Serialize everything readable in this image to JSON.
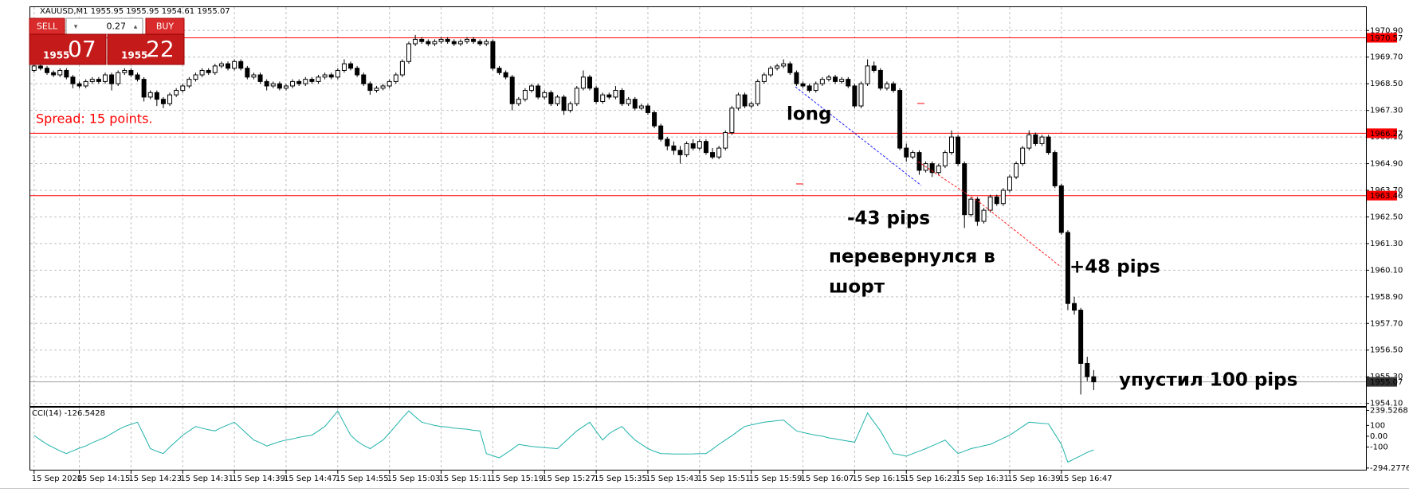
{
  "window_title": "XAUUSD,M1  1955.95 1955.95 1954.61 1955.07",
  "trade_panel": {
    "sell": "SELL",
    "buy": "BUY",
    "lot": 0.27,
    "sell_main": "1955",
    "sell_pips": "07",
    "buy_main": "1955",
    "buy_pips": "22"
  },
  "spread_text": "Spread: 15 points.",
  "chart_data": {
    "type": "candlestick",
    "ylim": [
      1953.98,
      1971.95
    ],
    "yticks": [
      {
        "value": 1970.9,
        "label": "1970.90"
      },
      {
        "value": 1969.7,
        "label": "1969.70"
      },
      {
        "value": 1968.5,
        "label": "1968.50"
      },
      {
        "value": 1967.3,
        "label": "1967.30"
      },
      {
        "value": 1966.1,
        "label": "1966.10"
      },
      {
        "value": 1964.9,
        "label": "1964.90"
      },
      {
        "value": 1963.7,
        "label": "1963.70"
      },
      {
        "value": 1962.5,
        "label": "1962.50"
      },
      {
        "value": 1961.3,
        "label": "1961.30"
      },
      {
        "value": 1960.1,
        "label": "1960.10"
      },
      {
        "value": 1958.9,
        "label": "1958.90"
      },
      {
        "value": 1957.7,
        "label": "1957.70"
      },
      {
        "value": 1956.5,
        "label": "1956.50"
      },
      {
        "value": 1955.3,
        "label": "1955.30"
      },
      {
        "value": 1954.1,
        "label": "1954.10"
      }
    ],
    "xticks": [
      {
        "value": 0,
        "label": "15 Sep 2020"
      },
      {
        "value": 7,
        "label": "15 Sep 14:15"
      },
      {
        "value": 15,
        "label": "15 Sep 14:23"
      },
      {
        "value": 23,
        "label": "15 Sep 14:31"
      },
      {
        "value": 31,
        "label": "15 Sep 14:39"
      },
      {
        "value": 39,
        "label": "15 Sep 14:47"
      },
      {
        "value": 47,
        "label": "15 Sep 14:55"
      },
      {
        "value": 55,
        "label": "15 Sep 15:03"
      },
      {
        "value": 63,
        "label": "15 Sep 15:11"
      },
      {
        "value": 71,
        "label": "15 Sep 15:19"
      },
      {
        "value": 79,
        "label": "15 Sep 15:27"
      },
      {
        "value": 87,
        "label": "15 Sep 15:35"
      },
      {
        "value": 95,
        "label": "15 Sep 15:43"
      },
      {
        "value": 103,
        "label": "15 Sep 15:51"
      },
      {
        "value": 111,
        "label": "15 Sep 15:59"
      },
      {
        "value": 119,
        "label": "15 Sep 16:07"
      },
      {
        "value": 127,
        "label": "15 Sep 16:15"
      },
      {
        "value": 135,
        "label": "15 Sep 16:23"
      },
      {
        "value": 143,
        "label": "15 Sep 16:31"
      },
      {
        "value": 151,
        "label": "15 Sep 16:39"
      },
      {
        "value": 159,
        "label": "15 Sep 16:47"
      }
    ],
    "grid": true,
    "up_color": "#ffffff",
    "down_color": "#000000",
    "hlines": [
      1970.57,
      1966.27,
      1963.46
    ],
    "hline_color": "#ff0000",
    "current_price": 1955.07,
    "annotations": [
      "long",
      "-43 pips",
      "перевернулся в",
      "шорт",
      "+48 pips",
      "упустил 100 pips"
    ],
    "candles": [
      [
        1969.1,
        1969.45,
        1969.0,
        1969.3
      ],
      [
        1969.3,
        1969.4,
        1969.1,
        1969.2
      ],
      [
        1969.2,
        1969.3,
        1968.9,
        1969.0
      ],
      [
        1969.0,
        1969.1,
        1968.8,
        1968.9
      ],
      [
        1968.9,
        1969.2,
        1968.8,
        1969.1
      ],
      [
        1969.1,
        1969.2,
        1968.7,
        1968.8
      ],
      [
        1968.8,
        1968.9,
        1968.3,
        1968.5
      ],
      [
        1968.5,
        1968.6,
        1968.3,
        1968.4
      ],
      [
        1968.4,
        1968.7,
        1968.3,
        1968.6
      ],
      [
        1968.6,
        1968.8,
        1968.5,
        1968.7
      ],
      [
        1968.7,
        1968.8,
        1968.5,
        1968.6
      ],
      [
        1968.6,
        1969.0,
        1968.5,
        1968.9
      ],
      [
        1968.9,
        1969.0,
        1968.2,
        1968.5
      ],
      [
        1968.5,
        1969.1,
        1968.4,
        1969.0
      ],
      [
        1969.0,
        1969.2,
        1968.9,
        1969.1
      ],
      [
        1969.1,
        1969.2,
        1968.8,
        1968.9
      ],
      [
        1968.9,
        1969.0,
        1968.6,
        1968.7
      ],
      [
        1968.7,
        1968.8,
        1967.7,
        1967.9
      ],
      [
        1967.9,
        1968.2,
        1967.8,
        1968.1
      ],
      [
        1968.1,
        1968.2,
        1967.5,
        1967.8
      ],
      [
        1967.8,
        1967.9,
        1967.4,
        1967.6
      ],
      [
        1967.6,
        1968.1,
        1967.5,
        1968.0
      ],
      [
        1968.0,
        1968.3,
        1967.9,
        1968.2
      ],
      [
        1968.2,
        1968.5,
        1968.1,
        1968.4
      ],
      [
        1968.4,
        1968.8,
        1968.3,
        1968.7
      ],
      [
        1968.7,
        1969.0,
        1968.6,
        1968.9
      ],
      [
        1968.9,
        1969.2,
        1968.8,
        1969.1
      ],
      [
        1969.1,
        1969.2,
        1968.9,
        1969.0
      ],
      [
        1969.0,
        1969.4,
        1968.9,
        1969.3
      ],
      [
        1969.3,
        1969.5,
        1969.2,
        1969.4
      ],
      [
        1969.4,
        1969.5,
        1969.1,
        1969.2
      ],
      [
        1969.2,
        1969.6,
        1969.1,
        1969.5
      ],
      [
        1969.5,
        1969.6,
        1969.1,
        1969.2
      ],
      [
        1969.2,
        1969.3,
        1968.7,
        1968.8
      ],
      [
        1968.8,
        1969.0,
        1968.7,
        1968.9
      ],
      [
        1968.9,
        1969.0,
        1968.5,
        1968.6
      ],
      [
        1968.6,
        1968.7,
        1968.2,
        1968.4
      ],
      [
        1968.4,
        1968.6,
        1968.3,
        1968.5
      ],
      [
        1968.5,
        1968.6,
        1968.2,
        1968.3
      ],
      [
        1968.3,
        1968.5,
        1968.2,
        1968.4
      ],
      [
        1968.4,
        1968.7,
        1968.3,
        1968.6
      ],
      [
        1968.6,
        1968.7,
        1968.4,
        1968.5
      ],
      [
        1968.5,
        1968.8,
        1968.4,
        1968.7
      ],
      [
        1968.7,
        1968.8,
        1968.5,
        1968.6
      ],
      [
        1968.6,
        1968.9,
        1968.5,
        1968.8
      ],
      [
        1968.8,
        1969.0,
        1968.7,
        1968.9
      ],
      [
        1968.9,
        1969.0,
        1968.7,
        1968.8
      ],
      [
        1968.8,
        1969.2,
        1968.7,
        1969.1
      ],
      [
        1969.1,
        1969.6,
        1969.0,
        1969.4
      ],
      [
        1969.4,
        1969.5,
        1969.1,
        1969.2
      ],
      [
        1969.2,
        1969.3,
        1968.8,
        1968.9
      ],
      [
        1968.9,
        1969.0,
        1968.4,
        1968.5
      ],
      [
        1968.5,
        1968.6,
        1968.0,
        1968.2
      ],
      [
        1968.2,
        1968.4,
        1968.1,
        1968.3
      ],
      [
        1968.3,
        1968.5,
        1968.2,
        1968.4
      ],
      [
        1968.4,
        1968.7,
        1968.3,
        1968.6
      ],
      [
        1968.6,
        1969.0,
        1968.5,
        1968.9
      ],
      [
        1968.9,
        1969.6,
        1968.8,
        1969.5
      ],
      [
        1969.5,
        1970.4,
        1969.4,
        1970.3
      ],
      [
        1970.3,
        1970.7,
        1970.2,
        1970.5
      ],
      [
        1970.5,
        1970.6,
        1970.3,
        1970.4
      ],
      [
        1970.4,
        1970.5,
        1970.2,
        1970.3
      ],
      [
        1970.3,
        1970.5,
        1970.2,
        1970.4
      ],
      [
        1970.4,
        1970.6,
        1970.3,
        1970.5
      ],
      [
        1970.5,
        1970.6,
        1970.3,
        1970.4
      ],
      [
        1970.4,
        1970.5,
        1970.2,
        1970.3
      ],
      [
        1970.3,
        1970.5,
        1970.2,
        1970.4
      ],
      [
        1970.4,
        1970.6,
        1970.3,
        1970.5
      ],
      [
        1970.5,
        1970.6,
        1970.3,
        1970.4
      ],
      [
        1970.4,
        1970.5,
        1970.2,
        1970.3
      ],
      [
        1970.3,
        1970.5,
        1970.2,
        1970.4
      ],
      [
        1970.4,
        1970.5,
        1969.1,
        1969.2
      ],
      [
        1969.2,
        1969.3,
        1968.9,
        1969.0
      ],
      [
        1969.0,
        1969.1,
        1968.7,
        1968.8
      ],
      [
        1968.8,
        1968.9,
        1967.3,
        1967.6
      ],
      [
        1967.6,
        1967.9,
        1967.5,
        1967.8
      ],
      [
        1967.8,
        1968.3,
        1967.7,
        1968.2
      ],
      [
        1968.2,
        1968.5,
        1968.1,
        1968.4
      ],
      [
        1968.4,
        1968.5,
        1967.8,
        1967.9
      ],
      [
        1967.9,
        1968.2,
        1967.8,
        1968.1
      ],
      [
        1968.1,
        1968.2,
        1967.5,
        1967.6
      ],
      [
        1967.6,
        1968.0,
        1967.5,
        1967.9
      ],
      [
        1967.9,
        1968.0,
        1967.1,
        1967.3
      ],
      [
        1967.3,
        1967.7,
        1967.2,
        1967.6
      ],
      [
        1967.6,
        1968.4,
        1967.5,
        1968.3
      ],
      [
        1968.3,
        1969.1,
        1968.2,
        1968.8
      ],
      [
        1968.8,
        1968.9,
        1968.2,
        1968.3
      ],
      [
        1968.3,
        1968.4,
        1967.6,
        1967.7
      ],
      [
        1967.7,
        1968.1,
        1967.6,
        1968.0
      ],
      [
        1968.0,
        1968.1,
        1967.8,
        1967.9
      ],
      [
        1967.9,
        1968.4,
        1967.8,
        1968.2
      ],
      [
        1968.2,
        1968.3,
        1967.5,
        1967.6
      ],
      [
        1967.6,
        1967.9,
        1967.5,
        1967.8
      ],
      [
        1967.8,
        1967.9,
        1967.3,
        1967.4
      ],
      [
        1967.4,
        1967.6,
        1967.3,
        1967.5
      ],
      [
        1967.5,
        1967.6,
        1967.1,
        1967.2
      ],
      [
        1967.2,
        1967.3,
        1966.5,
        1966.6
      ],
      [
        1966.6,
        1966.7,
        1965.9,
        1966.0
      ],
      [
        1966.0,
        1966.1,
        1965.5,
        1965.7
      ],
      [
        1965.7,
        1965.9,
        1965.3,
        1965.5
      ],
      [
        1965.5,
        1965.7,
        1964.9,
        1965.3
      ],
      [
        1965.3,
        1965.9,
        1965.2,
        1965.8
      ],
      [
        1965.8,
        1966.0,
        1965.5,
        1965.6
      ],
      [
        1965.6,
        1966.0,
        1965.5,
        1965.9
      ],
      [
        1965.9,
        1966.0,
        1965.3,
        1965.4
      ],
      [
        1965.4,
        1965.6,
        1965.1,
        1965.2
      ],
      [
        1965.2,
        1965.7,
        1965.1,
        1965.6
      ],
      [
        1965.6,
        1966.4,
        1965.5,
        1966.3
      ],
      [
        1966.3,
        1967.5,
        1966.2,
        1967.4
      ],
      [
        1967.4,
        1968.1,
        1967.3,
        1968.0
      ],
      [
        1968.0,
        1968.1,
        1967.4,
        1967.5
      ],
      [
        1967.5,
        1967.7,
        1967.4,
        1967.6
      ],
      [
        1967.6,
        1968.7,
        1967.5,
        1968.6
      ],
      [
        1968.6,
        1969.0,
        1968.5,
        1968.9
      ],
      [
        1968.9,
        1969.3,
        1968.8,
        1969.2
      ],
      [
        1969.2,
        1969.4,
        1969.1,
        1969.3
      ],
      [
        1969.3,
        1969.6,
        1969.2,
        1969.4
      ],
      [
        1969.4,
        1969.5,
        1968.9,
        1969.0
      ],
      [
        1969.0,
        1969.1,
        1968.4,
        1968.5
      ],
      [
        1968.5,
        1968.6,
        1968.3,
        1968.4
      ],
      [
        1968.4,
        1968.5,
        1968.1,
        1968.2
      ],
      [
        1968.2,
        1968.6,
        1968.1,
        1968.5
      ],
      [
        1968.5,
        1968.8,
        1968.4,
        1968.7
      ],
      [
        1968.7,
        1968.9,
        1968.6,
        1968.8
      ],
      [
        1968.8,
        1968.9,
        1968.5,
        1968.6
      ],
      [
        1968.6,
        1968.8,
        1968.5,
        1968.7
      ],
      [
        1968.7,
        1968.8,
        1968.3,
        1968.4
      ],
      [
        1968.4,
        1968.5,
        1967.4,
        1967.5
      ],
      [
        1967.5,
        1968.6,
        1967.4,
        1968.5
      ],
      [
        1968.5,
        1969.6,
        1968.4,
        1969.3
      ],
      [
        1969.3,
        1969.5,
        1969.0,
        1969.1
      ],
      [
        1969.1,
        1969.2,
        1968.2,
        1968.3
      ],
      [
        1968.3,
        1968.6,
        1968.2,
        1968.5
      ],
      [
        1968.5,
        1968.6,
        1968.1,
        1968.2
      ],
      [
        1968.2,
        1968.3,
        1965.5,
        1965.6
      ],
      [
        1965.6,
        1965.8,
        1965.0,
        1965.2
      ],
      [
        1965.2,
        1965.5,
        1965.1,
        1965.4
      ],
      [
        1965.4,
        1965.5,
        1964.4,
        1964.6
      ],
      [
        1964.6,
        1965.0,
        1964.5,
        1964.9
      ],
      [
        1964.9,
        1965.0,
        1964.3,
        1964.5
      ],
      [
        1964.5,
        1964.9,
        1964.4,
        1964.8
      ],
      [
        1964.8,
        1965.5,
        1964.7,
        1965.4
      ],
      [
        1965.4,
        1966.4,
        1965.3,
        1966.1
      ],
      [
        1966.1,
        1966.2,
        1964.8,
        1964.9
      ],
      [
        1964.9,
        1965.0,
        1962.0,
        1962.6
      ],
      [
        1962.6,
        1963.4,
        1962.5,
        1963.3
      ],
      [
        1963.3,
        1963.4,
        1962.1,
        1962.3
      ],
      [
        1962.3,
        1962.9,
        1962.2,
        1962.8
      ],
      [
        1962.8,
        1963.5,
        1962.7,
        1963.4
      ],
      [
        1963.4,
        1963.5,
        1963.0,
        1963.1
      ],
      [
        1963.1,
        1963.8,
        1963.0,
        1963.7
      ],
      [
        1963.7,
        1964.4,
        1963.6,
        1964.3
      ],
      [
        1964.3,
        1965.0,
        1964.2,
        1964.9
      ],
      [
        1964.9,
        1965.7,
        1964.8,
        1965.6
      ],
      [
        1965.6,
        1966.4,
        1965.5,
        1966.2
      ],
      [
        1966.2,
        1966.3,
        1965.7,
        1965.8
      ],
      [
        1965.8,
        1966.2,
        1965.7,
        1966.1
      ],
      [
        1966.1,
        1966.2,
        1965.3,
        1965.4
      ],
      [
        1965.4,
        1965.5,
        1963.8,
        1963.9
      ],
      [
        1963.9,
        1964.0,
        1961.7,
        1961.8
      ],
      [
        1961.8,
        1961.9,
        1958.3,
        1958.6
      ],
      [
        1958.6,
        1958.9,
        1958.1,
        1958.3
      ],
      [
        1958.3,
        1958.4,
        1954.5,
        1955.9
      ],
      [
        1955.9,
        1956.2,
        1955.1,
        1955.3
      ],
      [
        1955.3,
        1955.6,
        1954.7,
        1955.07
      ]
    ],
    "indicator": {
      "type": "line",
      "title": "CCI(14) -126.5428",
      "color": "#20b2aa",
      "ylim": [
        -310,
        265
      ],
      "yticks": [
        239.5268,
        100,
        {
          "value": 0,
          "label": "0.00"
        },
        -100,
        -294.2776
      ],
      "values": [
        8,
        -35,
        -75,
        -105,
        -135,
        -160,
        -135,
        -110,
        -90,
        -60,
        -35,
        -10,
        25,
        60,
        90,
        110,
        130,
        10,
        -115,
        -140,
        -160,
        -100,
        -45,
        10,
        50,
        90,
        75,
        60,
        50,
        80,
        105,
        130,
        75,
        20,
        -35,
        -60,
        -90,
        -70,
        -50,
        -35,
        -25,
        -10,
        0,
        10,
        50,
        90,
        160,
        235,
        120,
        10,
        -45,
        -85,
        -115,
        -75,
        -35,
        30,
        100,
        170,
        235,
        180,
        130,
        115,
        100,
        90,
        85,
        75,
        70,
        65,
        55,
        50,
        -160,
        -180,
        -200,
        -160,
        -120,
        -75,
        -85,
        -95,
        -100,
        -105,
        -110,
        -115,
        -60,
        -5,
        50,
        90,
        130,
        45,
        -35,
        25,
        60,
        90,
        25,
        -35,
        -75,
        -115,
        -140,
        -160,
        -162,
        -164,
        -165,
        -164,
        -163,
        -161,
        -160,
        -120,
        -75,
        -35,
        5,
        50,
        90,
        105,
        118,
        130,
        137,
        144,
        150,
        100,
        50,
        35,
        22,
        10,
        0,
        -15,
        -25,
        -35,
        -45,
        -55,
        80,
        215,
        130,
        50,
        -55,
        -160,
        -172,
        -185,
        -160,
        -138,
        -115,
        -88,
        -62,
        -35,
        -100,
        -160,
        -138,
        -115,
        -102,
        -88,
        -75,
        -47,
        -18,
        10,
        50,
        90,
        130,
        125,
        120,
        115,
        20,
        -75,
        -240,
        -210,
        -180,
        -150,
        -126.5428
      ]
    }
  }
}
